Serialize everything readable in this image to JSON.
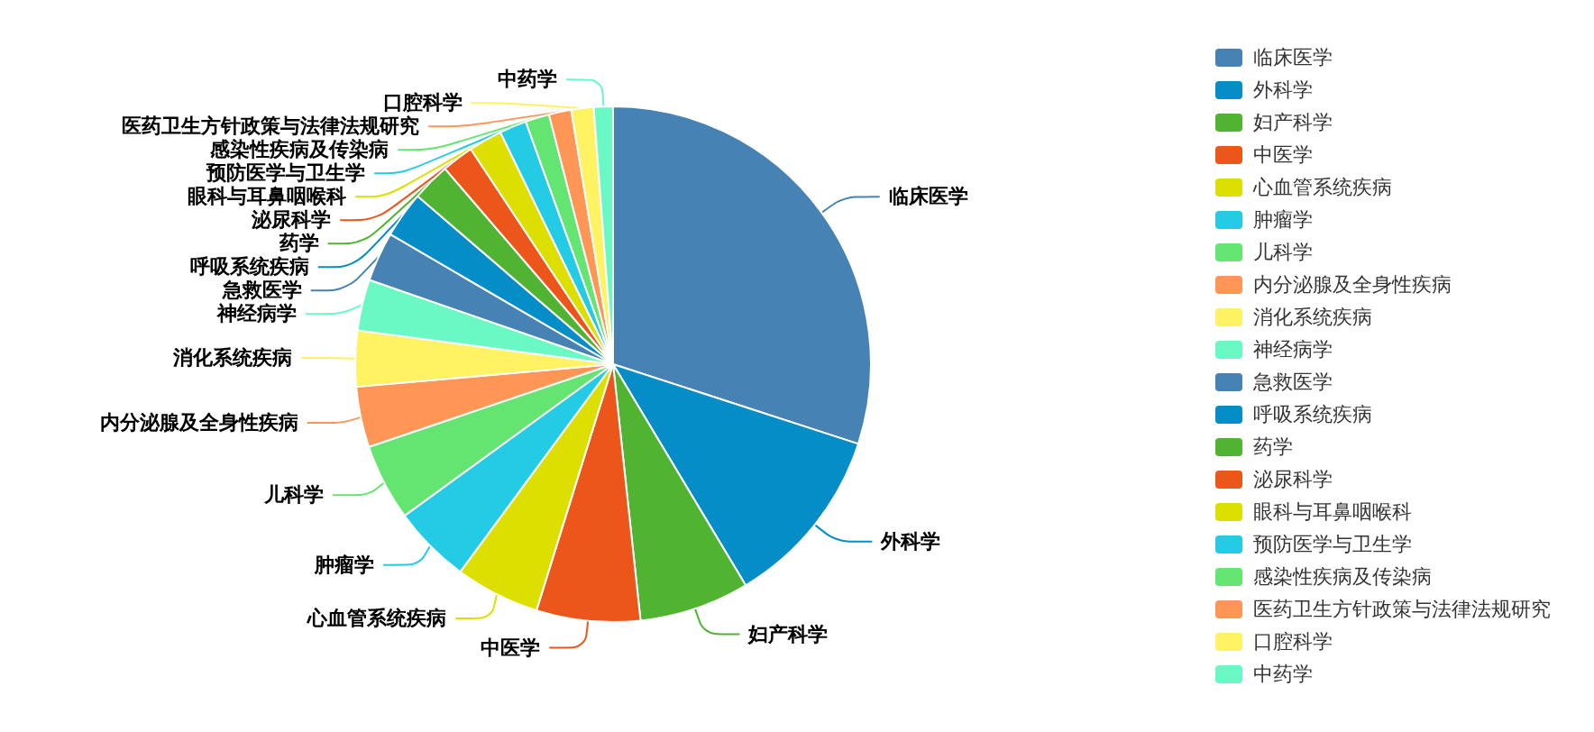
{
  "chart_data": {
    "type": "pie",
    "categories": [
      "临床医学",
      "外科学",
      "妇产科学",
      "中医学",
      "心血管系统疾病",
      "肿瘤学",
      "儿科学",
      "内分泌腺及全身性疾病",
      "消化系统疾病",
      "神经病学",
      "急救医学",
      "呼吸系统疾病",
      "药学",
      "泌尿科学",
      "眼科与耳鼻咽喉科",
      "预防医学与卫生学",
      "感染性疾病及传染病",
      "医药卫生方针政策与法律法规研究",
      "口腔科学",
      "中药学"
    ],
    "values": [
      30,
      11.4,
      6.9,
      6.5,
      5.3,
      4.9,
      4.8,
      3.8,
      3.5,
      3.2,
      3.1,
      2.9,
      2.4,
      2.0,
      2.1,
      1.7,
      1.5,
      1.4,
      1.4,
      1.2
    ],
    "colors": [
      "#4682b4",
      "#058dc7",
      "#50b432",
      "#ed561b",
      "#dddf00",
      "#24cbe5",
      "#64e572",
      "#ff9655",
      "#fff263",
      "#6af9c4",
      "#4682b4",
      "#058dc7",
      "#50b432",
      "#ed561b",
      "#dddf00",
      "#24cbe5",
      "#64e572",
      "#ff9655",
      "#fff263",
      "#6af9c4"
    ],
    "legend": "right"
  }
}
